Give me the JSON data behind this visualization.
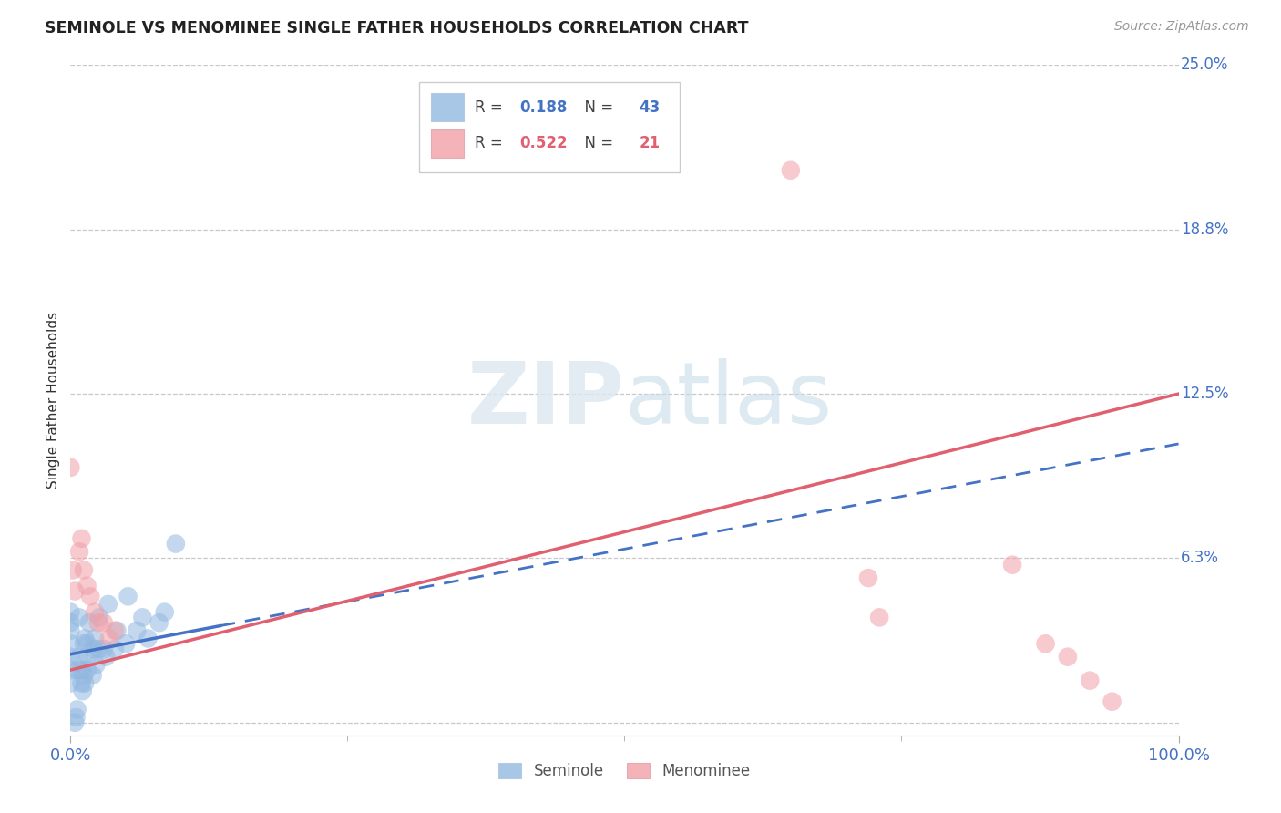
{
  "title": "SEMINOLE VS MENOMINEE SINGLE FATHER HOUSEHOLDS CORRELATION CHART",
  "source": "Source: ZipAtlas.com",
  "ylabel": "Single Father Households",
  "xlim": [
    0,
    1.0
  ],
  "ylim": [
    -0.005,
    0.25
  ],
  "ytick_vals": [
    0.0,
    0.0625,
    0.125,
    0.1875,
    0.25
  ],
  "ytick_labels": [
    "",
    "6.3%",
    "12.5%",
    "18.8%",
    "25.0%"
  ],
  "xtick_vals": [
    0.0,
    1.0
  ],
  "xtick_labels": [
    "0.0%",
    "100.0%"
  ],
  "seminole_color": "#92b8e0",
  "menominee_color": "#f0a0a8",
  "seminole_line_color": "#4472c4",
  "menominee_line_color": "#e06070",
  "seminole_R": 0.188,
  "seminole_N": 43,
  "menominee_R": 0.522,
  "menominee_N": 21,
  "watermark_zip": "ZIP",
  "watermark_atlas": "atlas",
  "grid_color": "#c8c8c8",
  "legend_box_color": "#dddddd",
  "bottom_legend_seminole": "Seminole",
  "bottom_legend_menominee": "Menominee"
}
